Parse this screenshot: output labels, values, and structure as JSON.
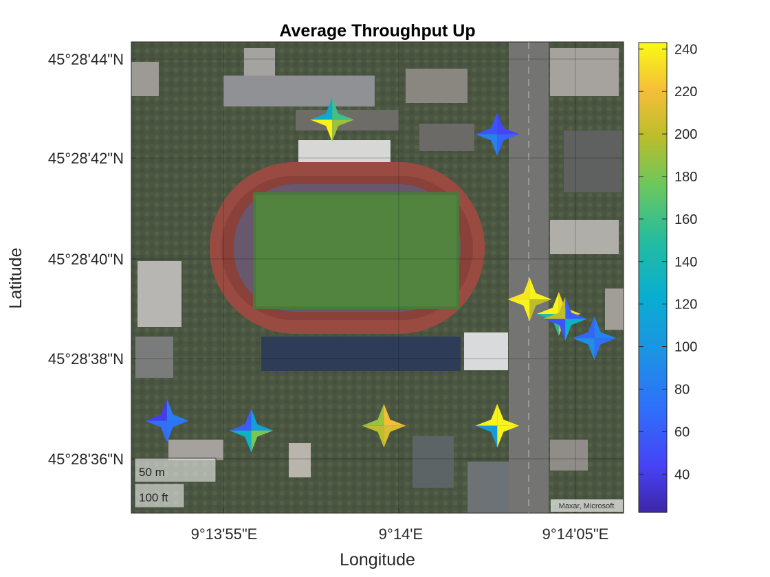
{
  "title": "Average Throughput Up",
  "xlabel": "Longitude",
  "ylabel": "Latitude",
  "x_ticks": [
    "9°13'55\"E",
    "9°14'E",
    "9°14'05\"E"
  ],
  "y_ticks": [
    "45°28'44\"N",
    "45°28'42\"N",
    "45°28'40\"N",
    "45°28'38\"N",
    "45°28'36\"N"
  ],
  "scale_bar": {
    "metric": "50 m",
    "imperial": "100 ft"
  },
  "attribution": "Maxar, Microsoft",
  "colorbar": {
    "ticks": [
      240,
      220,
      200,
      180,
      160,
      140,
      120,
      100,
      80,
      60,
      40
    ],
    "range": [
      22,
      243
    ],
    "colormap": "parula"
  },
  "chart_data": {
    "type": "scatter",
    "marker": "four-point-star split into four colored quadrants",
    "x_range_seconds_E": [
      "9°13'51.4\"E",
      "9°14'06.6\"E"
    ],
    "y_range_seconds_N": [
      "45°28'34.9\"N",
      "45°28'44.6\"N"
    ],
    "points": [
      {
        "lon": "9°13'57.6\"E",
        "lat": "45°28'43.0\"N",
        "values": [
          160,
          120,
          240,
          190
        ]
      },
      {
        "lon": "9°14'02.7\"E",
        "lat": "45°28'42.7\"N",
        "values": [
          45,
          55,
          85,
          65
        ]
      },
      {
        "lon": "9°14'03.7\"E",
        "lat": "45°28'39.3\"N",
        "values": [
          240,
          235,
          240,
          200
        ]
      },
      {
        "lon": "9°14'04.6\"E",
        "lat": "45°28'39.0\"N",
        "values": [
          230,
          240,
          150,
          215
        ]
      },
      {
        "lon": "9°14'04.8\"E",
        "lat": "45°28'38.9\"N",
        "values": [
          60,
          200,
          55,
          130
        ]
      },
      {
        "lon": "9°14'05.7\"E",
        "lat": "45°28'38.5\"N",
        "values": [
          85,
          65,
          95,
          70
        ]
      },
      {
        "lon": "9°13'52.5\"E",
        "lat": "45°28'36.8\"N",
        "values": [
          80,
          40,
          70,
          75
        ]
      },
      {
        "lon": "9°13'55.1\"E",
        "lat": "45°28'36.6\"N",
        "values": [
          110,
          60,
          130,
          180
        ]
      },
      {
        "lon": "9°13'59.2\"E",
        "lat": "45°28'36.7\"N",
        "values": [
          220,
          190,
          200,
          210
        ]
      },
      {
        "lon": "9°14'02.7\"E",
        "lat": "45°28'36.7\"N",
        "values": [
          240,
          240,
          105,
          240
        ]
      }
    ]
  }
}
